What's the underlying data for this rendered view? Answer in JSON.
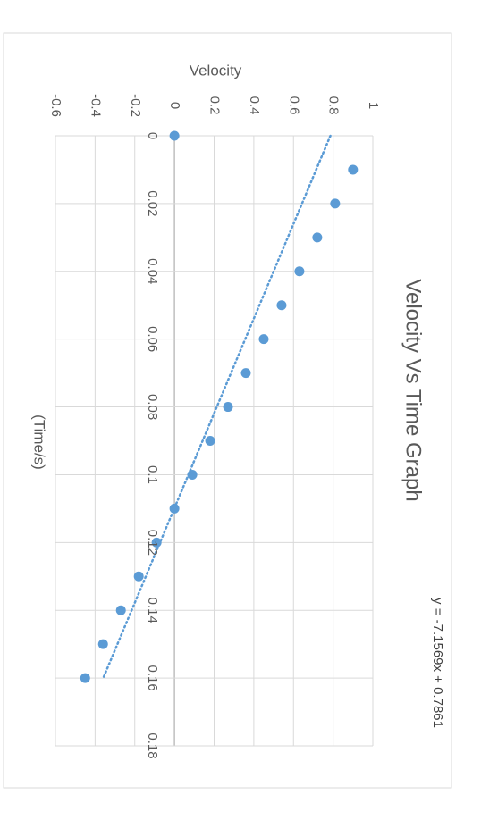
{
  "chart_data": {
    "type": "scatter",
    "title": "Velocity Vs Time Graph",
    "xlabel": "(Time/s)",
    "ylabel": "Velocity",
    "xlim": [
      0,
      0.18
    ],
    "ylim": [
      -0.6,
      1
    ],
    "x_ticks": [
      "0",
      "0.02",
      "0.04",
      "0.06",
      "0.08",
      "0.1",
      "0.12",
      "0.14",
      "0.16",
      "0.18"
    ],
    "y_ticks": [
      "-0.6",
      "-0.4",
      "-0.2",
      "0",
      "0.2",
      "0.4",
      "0.6",
      "0.8",
      "1"
    ],
    "grid": true,
    "orientation": "rotated 90 degrees clockwise",
    "series": [
      {
        "color": "#5b9bd5",
        "points": [
          [
            0,
            0
          ],
          [
            0.01,
            0.9
          ],
          [
            0.02,
            0.81
          ],
          [
            0.03,
            0.72
          ],
          [
            0.04,
            0.63
          ],
          [
            0.05,
            0.54
          ],
          [
            0.06,
            0.45
          ],
          [
            0.07,
            0.36
          ],
          [
            0.08,
            0.27
          ],
          [
            0.09,
            0.18
          ],
          [
            0.1,
            0.09
          ],
          [
            0.11,
            0
          ],
          [
            0.12,
            -0.09
          ],
          [
            0.13,
            -0.18
          ],
          [
            0.14,
            -0.27
          ],
          [
            0.15,
            -0.36
          ],
          [
            0.16,
            -0.45
          ]
        ]
      }
    ],
    "trendline": {
      "type": "linear",
      "style": "dotted",
      "color": "#5b9bd5",
      "slope": -7.1569,
      "intercept": 0.7861,
      "x_range": [
        0,
        0.16
      ],
      "equation": "y = -7.1569x + 0.7861"
    }
  }
}
